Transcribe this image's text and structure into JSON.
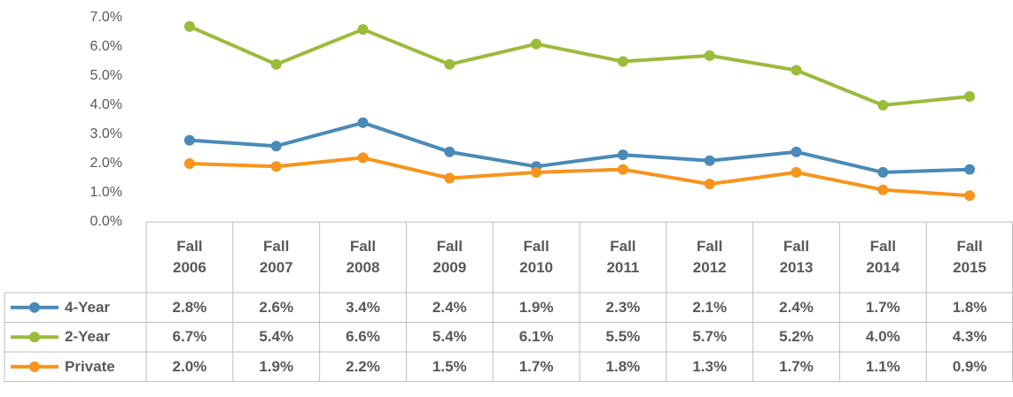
{
  "chart_data": {
    "type": "line",
    "categories": [
      "Fall 2006",
      "Fall 2007",
      "Fall 2008",
      "Fall 2009",
      "Fall 2010",
      "Fall 2011",
      "Fall 2012",
      "Fall 2013",
      "Fall 2014",
      "Fall 2015"
    ],
    "ylim": [
      0,
      7
    ],
    "yticks": [
      {
        "value": 0,
        "label": "0.0%"
      },
      {
        "value": 1,
        "label": "1.0%"
      },
      {
        "value": 2,
        "label": "2.0%"
      },
      {
        "value": 3,
        "label": "3.0%"
      },
      {
        "value": 4,
        "label": "4.0%"
      },
      {
        "value": 5,
        "label": "5.0%"
      },
      {
        "value": 6,
        "label": "6.0%"
      },
      {
        "value": 7,
        "label": "7.0%"
      }
    ],
    "grid": false,
    "series": [
      {
        "name": "4-Year",
        "color": "#4a8ab8",
        "values": [
          2.8,
          2.6,
          3.4,
          2.4,
          1.9,
          2.3,
          2.1,
          2.4,
          1.7,
          1.8
        ],
        "value_labels": [
          "2.8%",
          "2.6%",
          "3.4%",
          "2.4%",
          "1.9%",
          "2.3%",
          "2.1%",
          "2.4%",
          "1.7%",
          "1.8%"
        ]
      },
      {
        "name": "2-Year",
        "color": "#9bbb3b",
        "values": [
          6.7,
          5.4,
          6.6,
          5.4,
          6.1,
          5.5,
          5.7,
          5.2,
          4.0,
          4.3
        ],
        "value_labels": [
          "6.7%",
          "5.4%",
          "6.6%",
          "5.4%",
          "6.1%",
          "5.5%",
          "5.7%",
          "5.2%",
          "4.0%",
          "4.3%"
        ]
      },
      {
        "name": "Private",
        "color": "#f7941d",
        "values": [
          2.0,
          1.9,
          2.2,
          1.5,
          1.7,
          1.8,
          1.3,
          1.7,
          1.1,
          0.9
        ],
        "value_labels": [
          "2.0%",
          "1.9%",
          "2.2%",
          "1.5%",
          "1.7%",
          "1.8%",
          "1.3%",
          "1.7%",
          "1.1%",
          "0.9%"
        ]
      }
    ]
  }
}
